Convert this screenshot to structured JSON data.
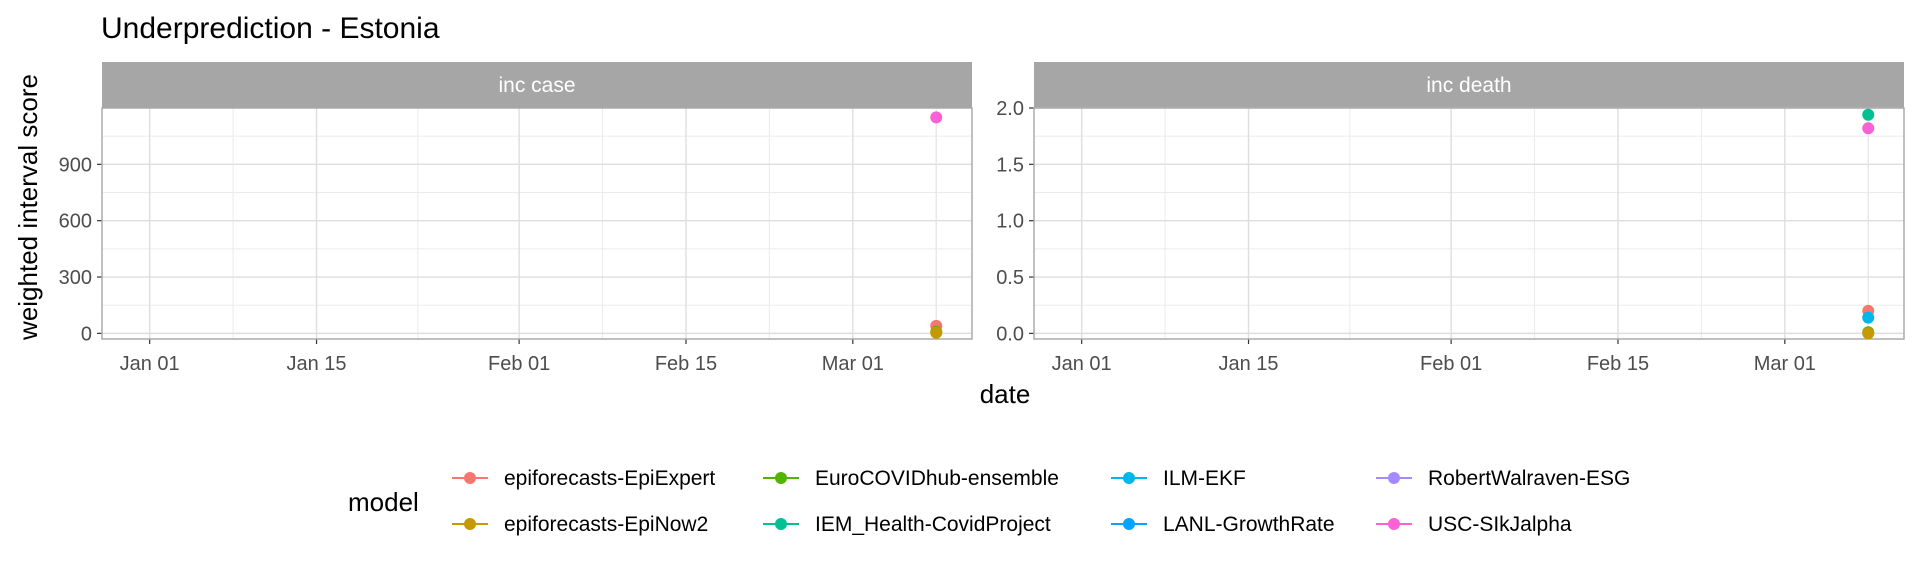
{
  "chart_data": {
    "type": "scatter",
    "title": "Underprediction - Estonia",
    "xlabel": "date",
    "ylabel": "weighted interval score",
    "x_ticks": [
      "Jan 01",
      "Jan 15",
      "Feb 01",
      "Feb 15",
      "Mar 01"
    ],
    "x_tick_dates": [
      "2021-01-01",
      "2021-01-15",
      "2021-02-01",
      "2021-02-15",
      "2021-03-01"
    ],
    "xlim": [
      "2020-12-28",
      "2021-03-11"
    ],
    "grid": true,
    "legend": {
      "title": "model",
      "position": "bottom",
      "entries": [
        {
          "name": "epiforecasts-EpiExpert",
          "color": "#F8766D"
        },
        {
          "name": "epiforecasts-EpiNow2",
          "color": "#C49A00"
        },
        {
          "name": "EuroCOVIDhub-ensemble",
          "color": "#53B400"
        },
        {
          "name": "IEM_Health-CovidProject",
          "color": "#00C094"
        },
        {
          "name": "ILM-EKF",
          "color": "#00B6EB"
        },
        {
          "name": "LANL-GrowthRate",
          "color": "#06A4FF"
        },
        {
          "name": "RobertWalraven-ESG",
          "color": "#A58AFF"
        },
        {
          "name": "USC-SIkJalpha",
          "color": "#FB61D7"
        }
      ]
    },
    "panels": [
      {
        "strip": "inc case",
        "ylim": [
          -30,
          1200
        ],
        "y_ticks": [
          0,
          300,
          600,
          900
        ],
        "points": [
          {
            "series": "USC-SIkJalpha",
            "x": "2021-03-08",
            "y": 1150
          },
          {
            "series": "epiforecasts-EpiExpert",
            "x": "2021-03-08",
            "y": 40
          },
          {
            "series": "EuroCOVIDhub-ensemble",
            "x": "2021-03-08",
            "y": 8
          },
          {
            "series": "epiforecasts-EpiNow2",
            "x": "2021-03-08",
            "y": 3
          }
        ]
      },
      {
        "strip": "inc death",
        "ylim": [
          -0.05,
          2.0
        ],
        "y_ticks": [
          0.0,
          0.5,
          1.0,
          1.5,
          2.0
        ],
        "y_tick_labels": [
          "0.0",
          "0.5",
          "1.0",
          "1.5",
          "2.0"
        ],
        "points": [
          {
            "series": "IEM_Health-CovidProject",
            "x": "2021-03-08",
            "y": 1.94
          },
          {
            "series": "USC-SIkJalpha",
            "x": "2021-03-08",
            "y": 1.82
          },
          {
            "series": "epiforecasts-EpiExpert",
            "x": "2021-03-08",
            "y": 0.2
          },
          {
            "series": "ILM-EKF",
            "x": "2021-03-08",
            "y": 0.14
          },
          {
            "series": "EuroCOVIDhub-ensemble",
            "x": "2021-03-08",
            "y": 0.01
          },
          {
            "series": "epiforecasts-EpiNow2",
            "x": "2021-03-08",
            "y": 0.0
          }
        ]
      }
    ]
  }
}
